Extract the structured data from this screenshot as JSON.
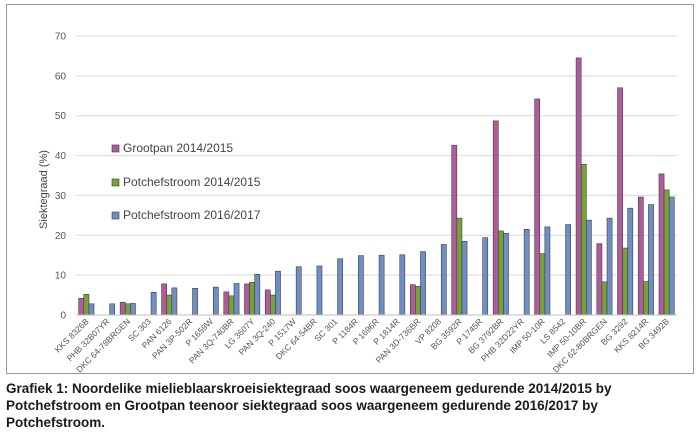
{
  "chart_data": {
    "type": "bar",
    "ylabel": "Siektegraad (%)",
    "ylim": [
      0,
      70
    ],
    "yticks": [
      0,
      10,
      20,
      30,
      40,
      50,
      60,
      70
    ],
    "grid": true,
    "legend_position": "left",
    "categories": [
      "KKS 8326B",
      "PHB 32B07YR",
      "DKC 64-78BRGEN",
      "SC 303",
      "PAN 6126",
      "PAN 3P-502R",
      "P 1659W",
      "PAN 3Q-740BR",
      "LG 3607Y",
      "PAN 3Q-240",
      "P 1517W",
      "DKC 64-54BR",
      "SC 301",
      "P 1184R",
      "P 1696R",
      "P 1814R",
      "PAN 3D-736BR",
      "VP 8208",
      "BG 3592R",
      "P 1745R",
      "BG 3792BR",
      "PHB 32D22YR",
      "IMP 50-10R",
      "LS 8542",
      "IMP 50-10BR",
      "DKC 62-80BRGEN",
      "BG 3292",
      "KKS 8214R",
      "BG 3492B"
    ],
    "series": [
      {
        "name": "Grootpan 2014/2015",
        "color": "#b05c9c",
        "values": [
          4.2,
          null,
          3.2,
          null,
          7.8,
          null,
          null,
          5.8,
          7.8,
          6.3,
          null,
          null,
          null,
          null,
          null,
          null,
          7.6,
          null,
          42.6,
          null,
          48.7,
          null,
          54.2,
          null,
          64.5,
          17.9,
          57.0,
          29.6,
          35.4
        ]
      },
      {
        "name": "Potchefstroom 2014/2015",
        "color": "#77a23a",
        "values": [
          5.2,
          null,
          2.8,
          null,
          5.0,
          null,
          null,
          4.8,
          8.2,
          5.0,
          null,
          null,
          null,
          null,
          null,
          null,
          7.2,
          null,
          24.3,
          null,
          21.1,
          null,
          15.4,
          null,
          37.8,
          8.3,
          16.8,
          8.4,
          31.4
        ]
      },
      {
        "name": "Potchefstroom 2016/2017",
        "color": "#6f8fc4",
        "values": [
          2.8,
          2.8,
          2.9,
          5.7,
          6.8,
          6.7,
          7.0,
          7.9,
          10.2,
          11.0,
          12.1,
          12.3,
          14.1,
          14.9,
          15.0,
          15.1,
          15.9,
          17.7,
          18.5,
          19.4,
          20.5,
          21.5,
          22.1,
          22.7,
          23.8,
          24.3,
          26.8,
          27.7,
          29.6
        ]
      }
    ]
  },
  "caption": "Grafiek 1: Noordelike mielieblaarskroeisiektegraad soos waargeneem gedurende 2014/2015 by Potchefstroom en Grootpan teenoor siektegraad soos waargeneem gedurende 2016/2017 by Potchefstroom."
}
